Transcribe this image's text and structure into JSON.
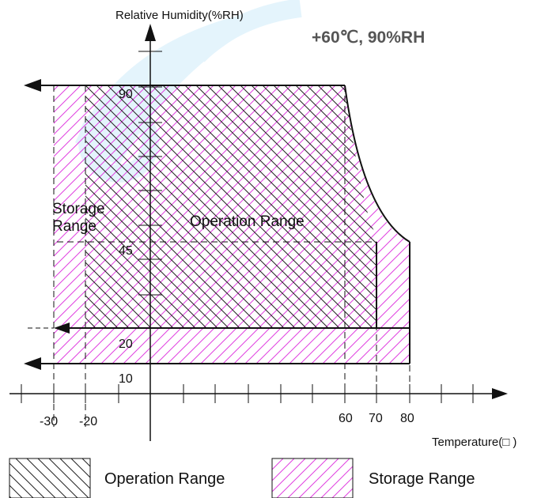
{
  "y_axis_label": "Relative Humidity(%RH)",
  "x_axis_label": "Temperature(□ )",
  "condition_note": "+60℃, 90%RH",
  "region_labels": {
    "storage_line1": "Storage",
    "storage_line2": "Range",
    "operation": "Operation Range"
  },
  "humidity_ticks": [
    "90",
    "45",
    "20",
    "10"
  ],
  "temperature_ticks": [
    "-30",
    "-20",
    "60",
    "70",
    "80"
  ],
  "legend": {
    "operation": "Operation Range",
    "storage": "Storage Range"
  },
  "colors": {
    "operation_hatch": "#222222",
    "storage_hatch": "#e040e0",
    "watermark": "#2aa8e8"
  },
  "ranges": {
    "operation": {
      "temp_min": -20,
      "temp_max": 70,
      "rh_min": 20,
      "rh_max": 90
    },
    "storage": {
      "temp_min": -30,
      "temp_max": 80,
      "rh_min": 10,
      "rh_max": 90
    }
  }
}
